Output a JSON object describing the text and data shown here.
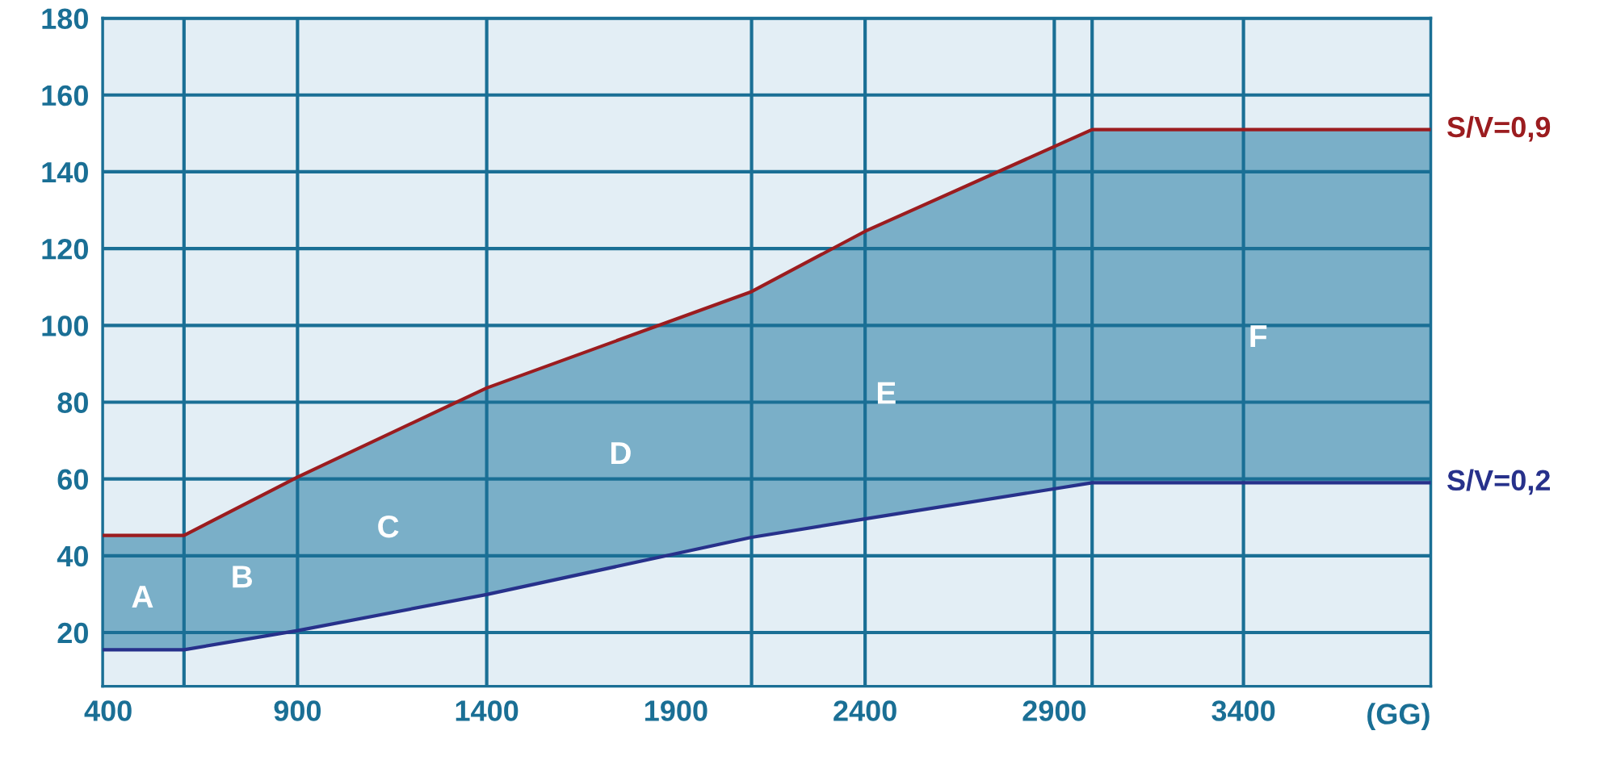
{
  "chart_data": {
    "type": "line",
    "xlabel": "(GG)",
    "x": [
      385,
      600,
      900,
      1400,
      2100,
      2400,
      3000,
      3895
    ],
    "xlim": [
      385,
      3895
    ],
    "xticks": [
      400,
      900,
      1400,
      1900,
      2400,
      2900,
      3400
    ],
    "ylim": [
      6,
      180
    ],
    "yticks": [
      20,
      40,
      60,
      80,
      100,
      120,
      140,
      160,
      180
    ],
    "grid": "y",
    "series": [
      {
        "name": "S/V=0,9",
        "color": "#9b1c1f",
        "values": [
          45.3,
          45.3,
          60.5,
          83.7,
          108.8,
          124.5,
          151,
          151
        ],
        "lower": [
          15.5,
          15.5,
          20.5,
          29.9,
          44.8,
          49.6,
          59,
          59
        ],
        "upper": [
          45.3,
          45.3,
          60.5,
          83.7,
          108.8,
          124.5,
          151,
          151
        ]
      },
      {
        "name": "S/V=0,2",
        "color": "#27318b",
        "values": [
          15.5,
          15.5,
          20.5,
          29.9,
          44.8,
          49.6,
          59,
          59
        ]
      }
    ],
    "ref_lines": [
      {
        "axis": "x",
        "value": 600
      },
      {
        "axis": "x",
        "value": 900
      },
      {
        "axis": "x",
        "value": 1400
      },
      {
        "axis": "x",
        "value": 2100
      },
      {
        "axis": "x",
        "value": 2400
      },
      {
        "axis": "x",
        "value": 2900
      },
      {
        "axis": "x",
        "value": 3000
      },
      {
        "axis": "x",
        "value": 3400
      }
    ],
    "annotations": [
      "A",
      "B",
      "C",
      "D",
      "E",
      "F"
    ]
  }
}
